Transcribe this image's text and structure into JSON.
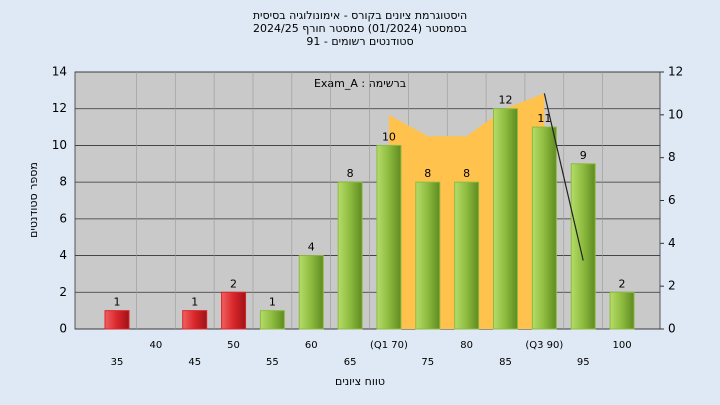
{
  "chart_data": {
    "type": "bar",
    "title_lines": [
      "היסטוגרמת ציונים בקורס - אימונולוגיה בסיסית",
      "בסמסטר  (01/2024)  סמסטר חורף 2024/25",
      "סטודנטים רשומים - 91"
    ],
    "annotation": "Exam_A : ברשימה",
    "x_label": "טווח ציונים",
    "y_label": "מספר סטודנטים",
    "categories": [
      "35",
      "40",
      "45",
      "50",
      "55",
      "60",
      "65",
      "(Q1 70)",
      "75",
      "80",
      "85",
      "(Q3 90)",
      "95",
      "100"
    ],
    "values": [
      1,
      0,
      1,
      2,
      1,
      4,
      8,
      10,
      8,
      8,
      12,
      11,
      9,
      2
    ],
    "colors": [
      "#d9262b",
      "#d9262b",
      "#d9262b",
      "#d9262b",
      "#8dbb3e",
      "#8dbb3e",
      "#8dbb3e",
      "#8dbb3e",
      "#8dbb3e",
      "#8dbb3e",
      "#8dbb3e",
      "#8dbb3e",
      "#8dbb3e",
      "#8dbb3e"
    ],
    "area": {
      "color": "#ffc34d",
      "axis": "y2",
      "values": [
        null,
        null,
        null,
        null,
        null,
        null,
        null,
        10,
        9,
        9,
        10.3,
        11,
        null,
        null
      ]
    },
    "line": {
      "color": "#222222",
      "axis": "y2",
      "values": [
        null,
        null,
        null,
        null,
        null,
        null,
        null,
        null,
        null,
        null,
        null,
        11,
        3.2,
        null
      ]
    },
    "ylim": [
      0,
      14
    ],
    "yticks": [
      0,
      2,
      4,
      6,
      8,
      10,
      12,
      14
    ],
    "y2lim": [
      0,
      12
    ],
    "y2ticks": [
      0,
      2,
      4,
      6,
      8,
      10,
      12
    ],
    "grid": true
  }
}
